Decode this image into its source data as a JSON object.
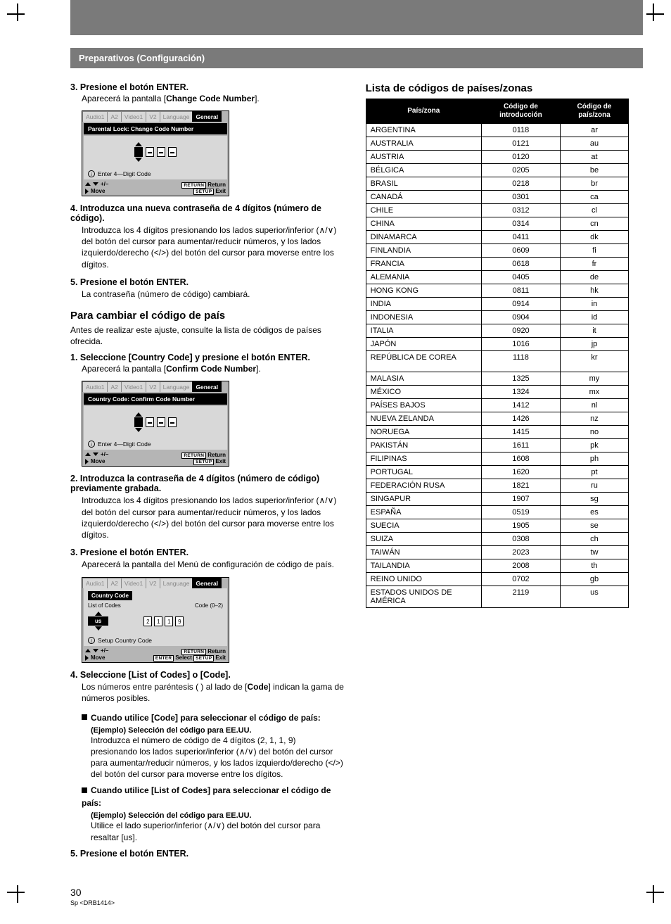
{
  "section_header": "Preparativos (Configuración)",
  "left": {
    "step3": {
      "head": "3. Presione el botón ENTER.",
      "body_pre": "Aparecerá la pantalla [",
      "body_bold": "Change Code Number",
      "body_post": "]."
    },
    "osd1": {
      "tabs": [
        "Audio1",
        "A2",
        "Video1",
        "V2",
        "Language",
        "General"
      ],
      "title": "Parental Lock: Change Code Number",
      "hint": "Enter 4—Digit Code",
      "foot_pm": "+/–",
      "foot_move": "Move",
      "foot_return_btn": "RETURN",
      "foot_return": "Return",
      "foot_setup_btn": "SETUP",
      "foot_exit": "Exit"
    },
    "step4": {
      "head": "4. Introduzca una nueva contraseña de 4 dígitos (número de código).",
      "body": "Introduzca los 4 dígitos presionando los lados superior/inferior (∧/∨) del botón del cursor para aumentar/reducir números, y los lados izquierdo/derecho (</>) del botón del cursor para moverse entre los dígitos."
    },
    "step5": {
      "head": "5. Presione el botón ENTER.",
      "body": "La contraseña (número de código) cambiará."
    },
    "h_country": "Para cambiar el código de país",
    "country_intro": "Antes de realizar este ajuste, consulte la lista de códigos de países ofrecida.",
    "cstep1": {
      "head": "1. Seleccione [Country Code] y presione el botón ENTER.",
      "body_pre": "Aparecerá la pantalla [",
      "body_bold": "Confirm Code Number",
      "body_post": "]."
    },
    "osd2": {
      "title": "Country Code: Confirm Code Number"
    },
    "cstep2": {
      "head": "2. Introduzca la contraseña de 4 dígitos (número de código) previamente grabada.",
      "body": "Introduzca los 4 dígitos presionando los lados superior/inferior (∧/∨) del botón del cursor para aumentar/reducir números, y los lados izquierdo/derecho (</>) del botón del cursor para moverse entre los dígitos."
    },
    "cstep3": {
      "head": "3. Presione el botón ENTER.",
      "body": "Aparecerá la pantalla del Menú de configuración de código de país."
    },
    "osd3": {
      "cc": "Country Code",
      "list": "List of Codes",
      "code": "Code  (0–2)",
      "us": "us",
      "digits": [
        "2",
        "1",
        "1",
        "9"
      ],
      "hint": "Setup Country Code",
      "enter_btn": "ENTER",
      "select": "Select"
    },
    "cstep4": {
      "head": "4. Seleccione [List of Codes] o [Code].",
      "body_pre": "Los números entre paréntesis ( ) al lado de [",
      "body_bold": "Code",
      "body_post": "] indican la gama de números posibles."
    },
    "bullet_code": {
      "head": "Cuando utilice [Code] para seleccionar el código de país:",
      "example": "(Ejemplo) Selección del código para EE.UU.",
      "body": "Introduzca el número de código de 4 dígitos (2, 1, 1, 9) presionando los lados superior/inferior (∧/∨) del botón del cursor para aumentar/reducir números, y los lados izquierdo/derecho (</>) del botón del cursor para moverse entre los dígitos."
    },
    "bullet_list": {
      "head": "Cuando utilice [List of Codes] para seleccionar el código de país:",
      "example": "(Ejemplo) Selección del código para EE.UU.",
      "body": "Utilice el lado superior/inferior (∧/∨) del botón del cursor para resaltar [us]."
    },
    "cstep5": {
      "head": "5. Presione el botón ENTER."
    }
  },
  "right": {
    "heading": "Lista de códigos de países/zonas",
    "table": {
      "headers": [
        "País/zona",
        "Código de introducción",
        "Código de país/zona"
      ],
      "rows": [
        [
          "ARGENTINA",
          "0118",
          "ar"
        ],
        [
          "AUSTRALIA",
          "0121",
          "au"
        ],
        [
          "AUSTRIA",
          "0120",
          "at"
        ],
        [
          "BÉLGICA",
          "0205",
          "be"
        ],
        [
          "BRASIL",
          "0218",
          "br"
        ],
        [
          "CANADÁ",
          "0301",
          "ca"
        ],
        [
          "CHILE",
          "0312",
          "cl"
        ],
        [
          "CHINA",
          "0314",
          "cn"
        ],
        [
          "DINAMARCA",
          "0411",
          "dk"
        ],
        [
          "FINLANDIA",
          "0609",
          "fi"
        ],
        [
          "FRANCIA",
          "0618",
          "fr"
        ],
        [
          "ALEMANIA",
          "0405",
          "de"
        ],
        [
          "HONG KONG",
          "0811",
          "hk"
        ],
        [
          "INDIA",
          "0914",
          "in"
        ],
        [
          "INDONESIA",
          "0904",
          "id"
        ],
        [
          "ITALIA",
          "0920",
          "it"
        ],
        [
          "JAPÓN",
          "1016",
          "jp"
        ],
        [
          "REPÚBLICA DE COREA",
          "1118",
          "kr"
        ],
        [
          "MALASIA",
          "1325",
          "my"
        ],
        [
          "MÉXICO",
          "1324",
          "mx"
        ],
        [
          "PAÍSES BAJOS",
          "1412",
          "nl"
        ],
        [
          "NUEVA ZELANDA",
          "1426",
          "nz"
        ],
        [
          "NORUEGA",
          "1415",
          "no"
        ],
        [
          "PAKISTÁN",
          "1611",
          "pk"
        ],
        [
          "FILIPINAS",
          "1608",
          "ph"
        ],
        [
          "PORTUGAL",
          "1620",
          "pt"
        ],
        [
          "FEDERACIÓN RUSA",
          "1821",
          "ru"
        ],
        [
          "SINGAPUR",
          "1907",
          "sg"
        ],
        [
          "ESPAÑA",
          "0519",
          "es"
        ],
        [
          "SUECIA",
          "1905",
          "se"
        ],
        [
          "SUIZA",
          "0308",
          "ch"
        ],
        [
          "TAIWÁN",
          "2023",
          "tw"
        ],
        [
          "TAILANDIA",
          "2008",
          "th"
        ],
        [
          "REINO UNIDO",
          "0702",
          "gb"
        ],
        [
          "ESTADOS UNIDOS DE AMÉRICA",
          "2119",
          "us"
        ]
      ],
      "tall_rows": [
        17,
        34
      ]
    }
  },
  "page_number": "30",
  "page_foot": "Sp <DRB1414>",
  "colors": {
    "header_gray": "#7a7a7a",
    "osd_gray": "#b5b5b5",
    "osd_light": "#d8d8d8",
    "black": "#000000",
    "white": "#ffffff"
  }
}
